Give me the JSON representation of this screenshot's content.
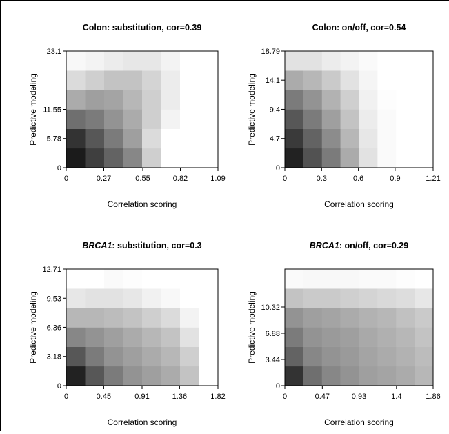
{
  "chart_data": [
    {
      "type": "heatmap",
      "title": "Colon: substitution, cor=0.39",
      "xlabel": "Correlation scoring",
      "ylabel": "Predictive modeling",
      "xlim": [
        0,
        1.09
      ],
      "ylim": [
        0,
        23.1
      ],
      "xticks": [
        0,
        0.27,
        0.55,
        0.82,
        1.09
      ],
      "yticks": [
        0,
        5.78,
        11.55,
        23.1
      ],
      "density": [
        [
          95,
          80,
          65,
          50,
          20,
          0,
          0,
          0
        ],
        [
          85,
          70,
          55,
          40,
          15,
          0,
          0,
          0
        ],
        [
          60,
          55,
          45,
          35,
          20,
          5,
          0,
          0
        ],
        [
          35,
          40,
          38,
          30,
          20,
          8,
          0,
          0
        ],
        [
          15,
          20,
          25,
          25,
          18,
          8,
          0,
          0
        ],
        [
          3,
          5,
          8,
          10,
          10,
          5,
          0,
          0
        ]
      ]
    },
    {
      "type": "heatmap",
      "title": "Colon: on/off, cor=0.54",
      "xlabel": "Correlation scoring",
      "ylabel": "Predictive modeling",
      "xlim": [
        0,
        1.21
      ],
      "ylim": [
        0,
        18.79
      ],
      "xticks": [
        0,
        0.3,
        0.6,
        0.9,
        1.21
      ],
      "yticks": [
        0,
        4.7,
        9.4,
        14.1,
        18.79
      ],
      "density": [
        [
          92,
          72,
          55,
          35,
          12,
          2,
          0,
          0
        ],
        [
          82,
          65,
          48,
          30,
          10,
          2,
          0,
          0
        ],
        [
          70,
          55,
          40,
          25,
          8,
          2,
          0,
          0
        ],
        [
          55,
          45,
          32,
          20,
          6,
          1,
          0,
          0
        ],
        [
          35,
          30,
          22,
          12,
          4,
          0,
          0,
          0
        ],
        [
          12,
          12,
          8,
          5,
          2,
          0,
          0,
          0
        ]
      ]
    },
    {
      "type": "heatmap",
      "title_em": "BRCA1",
      "title": ": substitution, cor=0.3",
      "xlabel": "Correlation scoring",
      "ylabel": "Predictive modeling",
      "xlim": [
        0,
        1.82
      ],
      "ylim": [
        0,
        12.71
      ],
      "xticks": [
        0,
        0.45,
        0.91,
        1.36,
        1.82
      ],
      "yticks": [
        0,
        3.18,
        6.36,
        9.53,
        12.71
      ],
      "density": [
        [
          92,
          70,
          55,
          45,
          40,
          35,
          25,
          0
        ],
        [
          70,
          55,
          45,
          40,
          35,
          30,
          20,
          0
        ],
        [
          50,
          45,
          40,
          35,
          30,
          25,
          12,
          0
        ],
        [
          30,
          30,
          28,
          25,
          20,
          15,
          5,
          0
        ],
        [
          10,
          12,
          12,
          10,
          6,
          3,
          0,
          0
        ],
        [
          0,
          0,
          2,
          1,
          0,
          0,
          0,
          0
        ]
      ]
    },
    {
      "type": "heatmap",
      "title_em": "BRCA1",
      "title": ": on/off, cor=0.29",
      "xlabel": "Correlation scoring",
      "ylabel": "Predictive modeling",
      "xlim": [
        0,
        1.86
      ],
      "ylim": [
        0,
        15.3
      ],
      "xticks": [
        0,
        0.47,
        0.93,
        1.4,
        1.86
      ],
      "yticks": [
        0,
        3.44,
        6.88,
        10.32
      ],
      "density": [
        [
          85,
          60,
          50,
          45,
          40,
          38,
          35,
          30
        ],
        [
          65,
          50,
          45,
          42,
          38,
          35,
          32,
          28
        ],
        [
          55,
          45,
          42,
          40,
          36,
          33,
          30,
          25
        ],
        [
          45,
          40,
          38,
          35,
          32,
          30,
          26,
          22
        ],
        [
          25,
          22,
          22,
          20,
          18,
          16,
          14,
          10
        ],
        [
          2,
          3,
          3,
          3,
          2,
          2,
          1,
          0
        ]
      ]
    }
  ]
}
